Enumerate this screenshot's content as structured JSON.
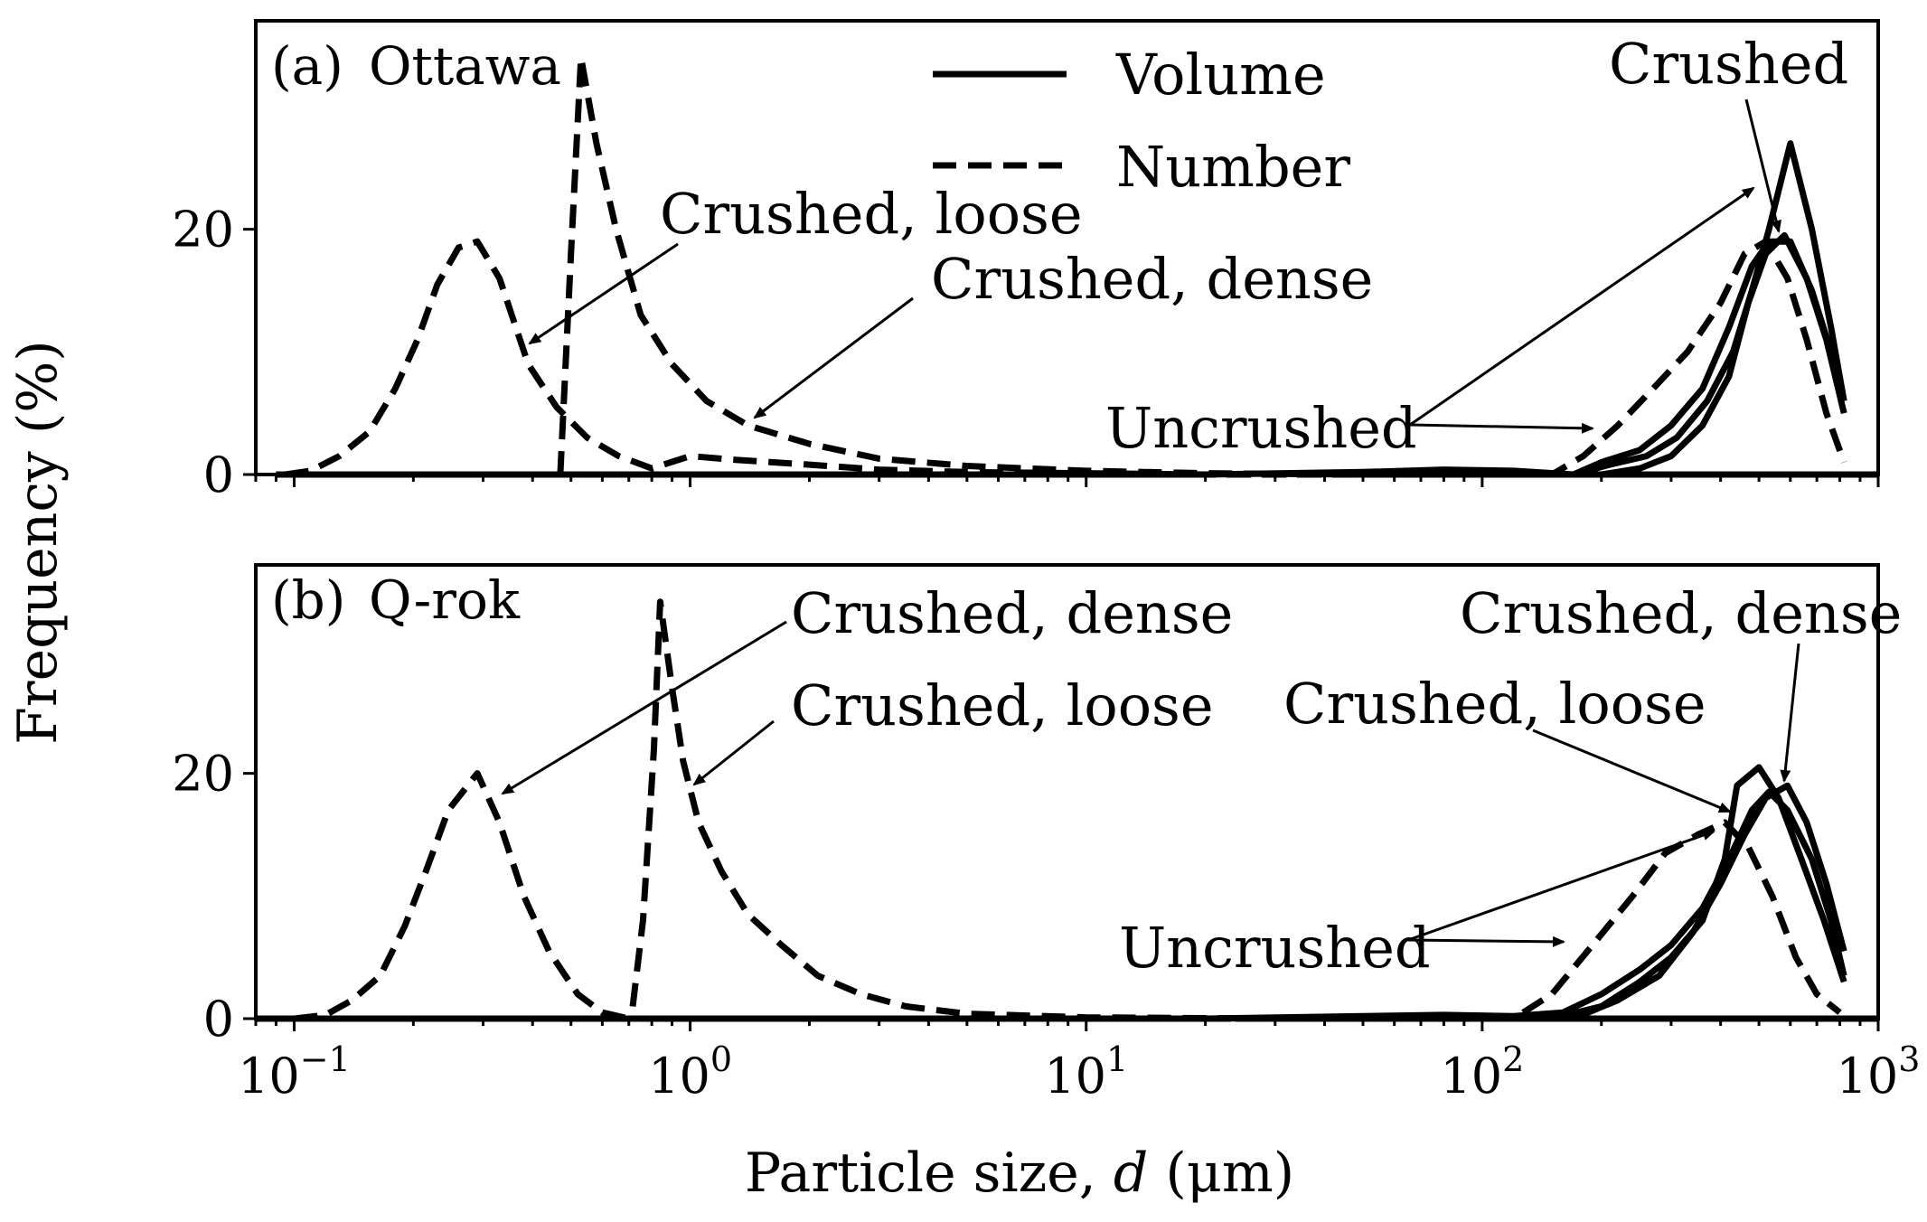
{
  "figure": {
    "ylabel": "Frequency (%)",
    "xlabel_prefix": "Particle size, ",
    "xlabel_var": "d",
    "xlabel_unit": " (μm)"
  },
  "legend": {
    "position": "top-center",
    "items": [
      {
        "label": "Volume",
        "style": "solid"
      },
      {
        "label": "Number",
        "style": "dashed"
      }
    ]
  },
  "chart_data": [
    {
      "type": "line",
      "panel_label": "(a)",
      "material": "Ottawa",
      "xscale": "log",
      "xlim": [
        0.08,
        1000
      ],
      "ylim": [
        0,
        37
      ],
      "y_ticks": [
        0,
        20
      ],
      "x_ticks": [
        0.1,
        1,
        10,
        100,
        1000
      ],
      "x_tick_labels": [
        {
          "base": "10",
          "exp": "−1"
        },
        {
          "base": "10",
          "exp": "0"
        },
        {
          "base": "10",
          "exp": "1"
        },
        {
          "base": "10",
          "exp": "2"
        },
        {
          "base": "10",
          "exp": "3"
        }
      ],
      "grid": false,
      "series": [
        {
          "style": "dashed",
          "points": [
            [
              0.095,
              0
            ],
            [
              0.11,
              0.3
            ],
            [
              0.13,
              1.5
            ],
            [
              0.155,
              3.5
            ],
            [
              0.18,
              7
            ],
            [
              0.205,
              11
            ],
            [
              0.23,
              15.5
            ],
            [
              0.26,
              18.5
            ],
            [
              0.29,
              19
            ],
            [
              0.33,
              16
            ],
            [
              0.39,
              9
            ],
            [
              0.46,
              5.5
            ],
            [
              0.55,
              3
            ],
            [
              0.66,
              1.5
            ],
            [
              0.8,
              0.5
            ],
            [
              1,
              1.5
            ],
            [
              1.3,
              1.2
            ],
            [
              2,
              0.8
            ],
            [
              3,
              0.4
            ],
            [
              5,
              0.2
            ],
            [
              10,
              0.1
            ],
            [
              20,
              0
            ],
            [
              1000,
              0
            ]
          ]
        },
        {
          "style": "dashed",
          "points": [
            [
              0.47,
              0
            ],
            [
              0.5,
              18
            ],
            [
              0.53,
              34
            ],
            [
              0.58,
              27
            ],
            [
              0.65,
              20
            ],
            [
              0.75,
              13
            ],
            [
              0.9,
              9
            ],
            [
              1.1,
              6
            ],
            [
              1.4,
              4
            ],
            [
              2,
              2.5
            ],
            [
              3,
              1.3
            ],
            [
              5,
              0.7
            ],
            [
              10,
              0.3
            ],
            [
              20,
              0.1
            ],
            [
              50,
              0
            ],
            [
              1000,
              0
            ]
          ]
        },
        {
          "style": "dashed",
          "points": [
            [
              0.09,
              0
            ],
            [
              100,
              0
            ],
            [
              150,
              0
            ],
            [
              180,
              1.5
            ],
            [
              220,
              4
            ],
            [
              270,
              7
            ],
            [
              330,
              10
            ],
            [
              400,
              14
            ],
            [
              460,
              18
            ],
            [
              520,
              19
            ],
            [
              590,
              16
            ],
            [
              660,
              11
            ],
            [
              740,
              5
            ],
            [
              820,
              1
            ]
          ]
        },
        {
          "style": "solid",
          "points": [
            [
              0.09,
              0
            ],
            [
              20,
              0
            ],
            [
              50,
              0.2
            ],
            [
              80,
              0.4
            ],
            [
              120,
              0.3
            ],
            [
              170,
              0
            ],
            [
              200,
              1
            ],
            [
              250,
              2
            ],
            [
              300,
              4
            ],
            [
              360,
              7
            ],
            [
              420,
              12
            ],
            [
              480,
              17
            ],
            [
              530,
              19
            ],
            [
              600,
              19
            ],
            [
              680,
              15
            ],
            [
              760,
              10
            ],
            [
              820,
              6
            ]
          ]
        },
        {
          "style": "solid",
          "points": [
            [
              170,
              0
            ],
            [
              210,
              0.8
            ],
            [
              260,
              1.5
            ],
            [
              310,
              3
            ],
            [
              370,
              6
            ],
            [
              430,
              10
            ],
            [
              480,
              15
            ],
            [
              530,
              20
            ],
            [
              600,
              27
            ],
            [
              680,
              20
            ],
            [
              760,
              12
            ],
            [
              820,
              6
            ]
          ]
        },
        {
          "style": "solid",
          "points": [
            [
              200,
              0
            ],
            [
              250,
              0.5
            ],
            [
              300,
              1.5
            ],
            [
              360,
              4
            ],
            [
              420,
              8
            ],
            [
              470,
              14
            ],
            [
              520,
              18
            ],
            [
              580,
              19.5
            ],
            [
              660,
              16
            ],
            [
              740,
              11
            ],
            [
              820,
              5
            ]
          ]
        }
      ],
      "annotations": [
        {
          "text": "Crushed, loose"
        },
        {
          "text": "Crushed, dense"
        },
        {
          "text": "Uncrushed"
        },
        {
          "text": "Crushed"
        }
      ]
    },
    {
      "type": "line",
      "panel_label": "(b)",
      "material": "Q-rok",
      "xscale": "log",
      "xlim": [
        0.08,
        1000
      ],
      "ylim": [
        0,
        37
      ],
      "y_ticks": [
        0,
        20
      ],
      "x_ticks": [
        0.1,
        1,
        10,
        100,
        1000
      ],
      "x_tick_labels": [
        {
          "base": "10",
          "exp": "−1"
        },
        {
          "base": "10",
          "exp": "0"
        },
        {
          "base": "10",
          "exp": "1"
        },
        {
          "base": "10",
          "exp": "2"
        },
        {
          "base": "10",
          "exp": "3"
        }
      ],
      "grid": false,
      "series": [
        {
          "style": "dashed",
          "points": [
            [
              0.1,
              0
            ],
            [
              0.12,
              0.3
            ],
            [
              0.14,
              1.5
            ],
            [
              0.165,
              3.5
            ],
            [
              0.19,
              7.5
            ],
            [
              0.215,
              12
            ],
            [
              0.245,
              17
            ],
            [
              0.29,
              20
            ],
            [
              0.33,
              16
            ],
            [
              0.38,
              10
            ],
            [
              0.44,
              5.5
            ],
            [
              0.52,
              2
            ],
            [
              0.6,
              0.5
            ],
            [
              0.7,
              0
            ],
            [
              1000,
              0
            ]
          ]
        },
        {
          "style": "dashed",
          "points": [
            [
              0.08,
              0
            ],
            [
              0.71,
              0
            ],
            [
              0.76,
              8
            ],
            [
              0.81,
              22
            ],
            [
              0.84,
              34
            ],
            [
              0.9,
              27
            ],
            [
              0.96,
              21
            ],
            [
              1.05,
              16
            ],
            [
              1.2,
              12
            ],
            [
              1.4,
              8.5
            ],
            [
              1.7,
              6
            ],
            [
              2.1,
              3.5
            ],
            [
              2.7,
              2
            ],
            [
              3.5,
              1
            ],
            [
              5,
              0.4
            ],
            [
              10,
              0.1
            ],
            [
              30,
              0
            ],
            [
              1000,
              0
            ]
          ]
        },
        {
          "style": "dashed",
          "points": [
            [
              0.08,
              0
            ],
            [
              120,
              0
            ],
            [
              150,
              2
            ],
            [
              190,
              6
            ],
            [
              240,
              10
            ],
            [
              290,
              13.5
            ],
            [
              350,
              15
            ],
            [
              410,
              16
            ],
            [
              470,
              14
            ],
            [
              540,
              10
            ],
            [
              620,
              5
            ],
            [
              700,
              2
            ],
            [
              800,
              0.5
            ]
          ]
        },
        {
          "style": "solid",
          "points": [
            [
              0.08,
              0
            ],
            [
              20,
              0
            ],
            [
              50,
              0.2
            ],
            [
              80,
              0.3
            ],
            [
              120,
              0.2
            ],
            [
              160,
              0.5
            ],
            [
              200,
              2
            ],
            [
              250,
              4
            ],
            [
              300,
              6
            ],
            [
              360,
              9
            ],
            [
              420,
              13
            ],
            [
              480,
              17
            ],
            [
              530,
              18.5
            ],
            [
              590,
              17
            ],
            [
              680,
              13
            ],
            [
              760,
              8
            ],
            [
              820,
              3.5
            ]
          ]
        },
        {
          "style": "solid",
          "points": [
            [
              150,
              0
            ],
            [
              200,
              1
            ],
            [
              250,
              3
            ],
            [
              300,
              5
            ],
            [
              360,
              8
            ],
            [
              410,
              13
            ],
            [
              440,
              19
            ],
            [
              500,
              20.5
            ],
            [
              560,
              18
            ],
            [
              640,
              13
            ],
            [
              730,
              8
            ],
            [
              820,
              3
            ]
          ]
        },
        {
          "style": "solid",
          "points": [
            [
              170,
              0
            ],
            [
              220,
              1.5
            ],
            [
              280,
              3.5
            ],
            [
              340,
              7
            ],
            [
              400,
              11
            ],
            [
              460,
              15
            ],
            [
              520,
              18
            ],
            [
              590,
              19
            ],
            [
              660,
              16
            ],
            [
              740,
              11
            ],
            [
              820,
              5.5
            ]
          ]
        }
      ],
      "annotations": [
        {
          "text": "Crushed, dense"
        },
        {
          "text": "Crushed, loose"
        },
        {
          "text": "Uncrushed"
        },
        {
          "text": "Crushed, dense"
        },
        {
          "text": "Crushed, loose"
        }
      ]
    }
  ]
}
